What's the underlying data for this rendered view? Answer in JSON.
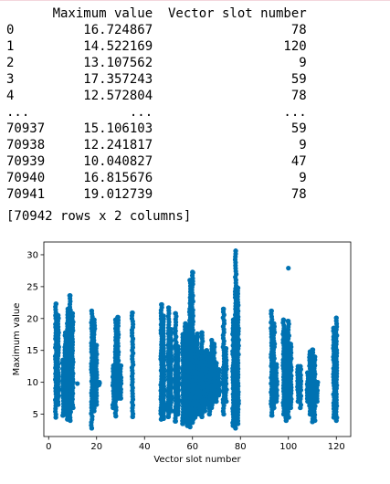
{
  "table": {
    "columns": [
      "Maximum value",
      "Vector slot number"
    ],
    "rows": [
      [
        "0",
        "16.724867",
        "78"
      ],
      [
        "1",
        "14.522169",
        "120"
      ],
      [
        "2",
        "13.107562",
        "9"
      ],
      [
        "3",
        "17.357243",
        "59"
      ],
      [
        "4",
        "12.572804",
        "78"
      ],
      [
        "...",
        "...",
        "..."
      ],
      [
        "70937",
        "15.106103",
        "59"
      ],
      [
        "70938",
        "12.241817",
        "9"
      ],
      [
        "70939",
        "10.040827",
        "47"
      ],
      [
        "70940",
        "16.815676",
        "9"
      ],
      [
        "70941",
        "19.012739",
        "78"
      ]
    ],
    "summary": "[70942 rows x 2 columns]"
  },
  "chart_data": {
    "type": "scatter",
    "xlabel": "Vector slot number",
    "ylabel": "Maximum value",
    "xlim": [
      -2,
      126
    ],
    "ylim": [
      1.5,
      32
    ],
    "xticks": [
      0,
      20,
      40,
      60,
      80,
      100,
      120
    ],
    "yticks": [
      5,
      10,
      15,
      20,
      25,
      30
    ],
    "grid": false,
    "marker_color": "#0072b2",
    "columns": [
      {
        "x": 3,
        "min": 4.5,
        "max": 22.3
      },
      {
        "x": 4,
        "min": 6.5,
        "max": 20.5
      },
      {
        "x": 6,
        "min": 4.8,
        "max": 13.5
      },
      {
        "x": 7,
        "min": 5.0,
        "max": 17.8
      },
      {
        "x": 8,
        "min": 4.2,
        "max": 21.5
      },
      {
        "x": 9,
        "min": 4.0,
        "max": 23.6
      },
      {
        "x": 10,
        "min": 6.0,
        "max": 20.8
      },
      {
        "x": 18,
        "min": 2.8,
        "max": 21.2
      },
      {
        "x": 19,
        "min": 5.5,
        "max": 19.8
      },
      {
        "x": 20,
        "min": 6.5,
        "max": 15.8
      },
      {
        "x": 21,
        "min": 9.6,
        "max": 10.0
      },
      {
        "x": 27,
        "min": 6.0,
        "max": 12.6
      },
      {
        "x": 28,
        "min": 4.7,
        "max": 19.8
      },
      {
        "x": 29,
        "min": 7.5,
        "max": 20.2
      },
      {
        "x": 30,
        "min": 7.5,
        "max": 12.6
      },
      {
        "x": 35,
        "min": 4.6,
        "max": 20.9
      },
      {
        "x": 47,
        "min": 4.2,
        "max": 22.2
      },
      {
        "x": 48,
        "min": 4.3,
        "max": 20.4
      },
      {
        "x": 50,
        "min": 4.6,
        "max": 21.7
      },
      {
        "x": 51,
        "min": 5.5,
        "max": 18.3
      },
      {
        "x": 53,
        "min": 3.9,
        "max": 20.8
      },
      {
        "x": 54,
        "min": 5.0,
        "max": 15.6
      },
      {
        "x": 56,
        "min": 3.5,
        "max": 17.5
      },
      {
        "x": 57,
        "min": 4.0,
        "max": 19.2
      },
      {
        "x": 58,
        "min": 3.2,
        "max": 19.0
      },
      {
        "x": 59,
        "min": 3.0,
        "max": 26.0
      },
      {
        "x": 60,
        "min": 3.7,
        "max": 27.2
      },
      {
        "x": 61,
        "min": 4.5,
        "max": 17.1
      },
      {
        "x": 62,
        "min": 5.0,
        "max": 17.6
      },
      {
        "x": 63,
        "min": 5.0,
        "max": 14.8
      },
      {
        "x": 64,
        "min": 4.6,
        "max": 17.8
      },
      {
        "x": 65,
        "min": 5.5,
        "max": 14.6
      },
      {
        "x": 66,
        "min": 6.5,
        "max": 15.0
      },
      {
        "x": 67,
        "min": 5.0,
        "max": 14.5
      },
      {
        "x": 68,
        "min": 6.0,
        "max": 16.6
      },
      {
        "x": 69,
        "min": 7.0,
        "max": 16.0
      },
      {
        "x": 70,
        "min": 7.0,
        "max": 13.0
      },
      {
        "x": 71,
        "min": 8.0,
        "max": 12.0
      },
      {
        "x": 73,
        "min": 5.0,
        "max": 21.5
      },
      {
        "x": 74,
        "min": 7.0,
        "max": 15.3
      },
      {
        "x": 77,
        "min": 3.2,
        "max": 19.8
      },
      {
        "x": 78,
        "min": 2.8,
        "max": 30.6
      },
      {
        "x": 79,
        "min": 3.5,
        "max": 24.8
      },
      {
        "x": 93,
        "min": 4.8,
        "max": 21.2
      },
      {
        "x": 94,
        "min": 6.0,
        "max": 19.2
      },
      {
        "x": 95,
        "min": 7.0,
        "max": 12.8
      },
      {
        "x": 98,
        "min": 5.0,
        "max": 19.8
      },
      {
        "x": 99,
        "min": 4.0,
        "max": 18.0
      },
      {
        "x": 100,
        "min": 4.5,
        "max": 19.6
      },
      {
        "x": 101,
        "min": 6.0,
        "max": 16.0
      },
      {
        "x": 104,
        "min": 7.0,
        "max": 12.5
      },
      {
        "x": 105,
        "min": 6.0,
        "max": 12.5
      },
      {
        "x": 108,
        "min": 7.0,
        "max": 11.5
      },
      {
        "x": 109,
        "min": 5.0,
        "max": 14.8
      },
      {
        "x": 110,
        "min": 3.8,
        "max": 15.1
      },
      {
        "x": 111,
        "min": 4.0,
        "max": 14.0
      },
      {
        "x": 112,
        "min": 7.0,
        "max": 10.0
      },
      {
        "x": 119,
        "min": 4.5,
        "max": 18.5
      },
      {
        "x": 120,
        "min": 4.0,
        "max": 20.1
      }
    ],
    "outliers": [
      {
        "x": 100,
        "y": 27.9
      },
      {
        "x": 78,
        "y": 30.6
      },
      {
        "x": 60,
        "y": 27.3
      },
      {
        "x": 12,
        "y": 9.8
      },
      {
        "x": 72,
        "y": 9.8
      }
    ]
  }
}
